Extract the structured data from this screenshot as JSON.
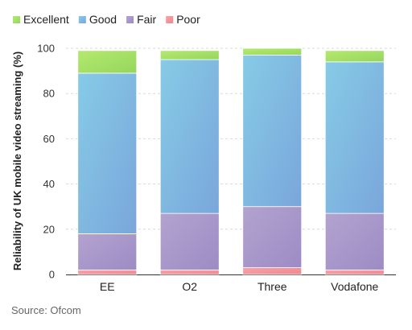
{
  "chart_data": {
    "type": "bar",
    "stacked": true,
    "categories": [
      "EE",
      "O2",
      "Three",
      "Vodafone"
    ],
    "series": [
      {
        "name": "Poor",
        "values": [
          2,
          2,
          3,
          2
        ],
        "color": "#f4939a"
      },
      {
        "name": "Fair",
        "values": [
          16,
          25,
          27,
          25
        ],
        "color": "#a995c9"
      },
      {
        "name": "Good",
        "values": [
          71,
          68,
          67,
          67
        ],
        "color": "#7fb8e0"
      },
      {
        "name": "Excellent",
        "values": [
          10,
          4,
          3,
          5
        ],
        "color": "#a6e067"
      }
    ],
    "legend_order": [
      "Excellent",
      "Good",
      "Fair",
      "Poor"
    ],
    "ylabel": "Reliability of UK mobile video streaming (%)",
    "ylim": [
      0,
      100
    ],
    "yticks": [
      0,
      20,
      40,
      60,
      80,
      100
    ],
    "grid": true,
    "legend_position": "top-left"
  },
  "source": "Source: Ofcom"
}
